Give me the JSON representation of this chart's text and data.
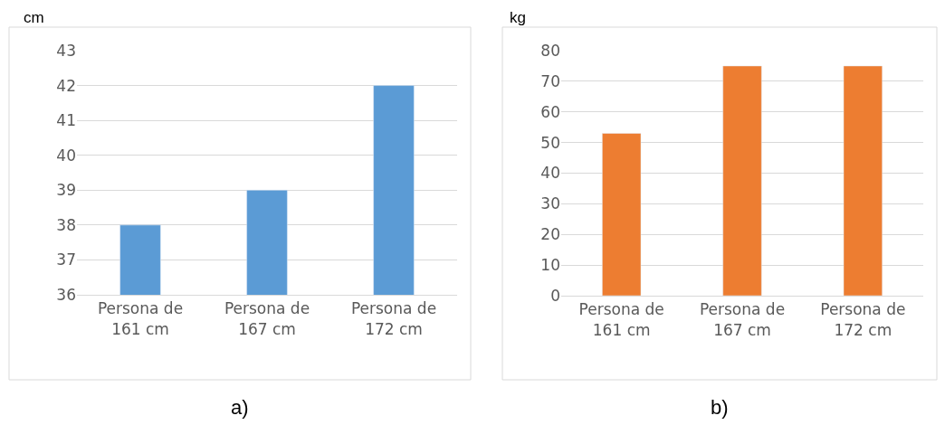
{
  "chart_data": [
    {
      "type": "bar",
      "ylabel": "cm",
      "xlabel": "a)",
      "categories": [
        "Persona de\n161 cm",
        "Persona de\n167 cm",
        "Persona de\n172 cm"
      ],
      "values": [
        38,
        39,
        42
      ],
      "color": "#5b9bd5",
      "ylim": [
        36,
        43
      ],
      "yticks": [
        36,
        37,
        38,
        39,
        40,
        41,
        42,
        43
      ],
      "grid": "y"
    },
    {
      "type": "bar",
      "ylabel": "kg",
      "xlabel": "b)",
      "categories": [
        "Persona de\n161 cm",
        "Persona de\n167 cm",
        "Persona de\n172 cm"
      ],
      "values": [
        53,
        75,
        75
      ],
      "color": "#ed7d31",
      "ylim": [
        0,
        80
      ],
      "yticks": [
        0,
        10,
        20,
        30,
        40,
        50,
        60,
        70,
        80
      ],
      "grid": "y"
    }
  ]
}
